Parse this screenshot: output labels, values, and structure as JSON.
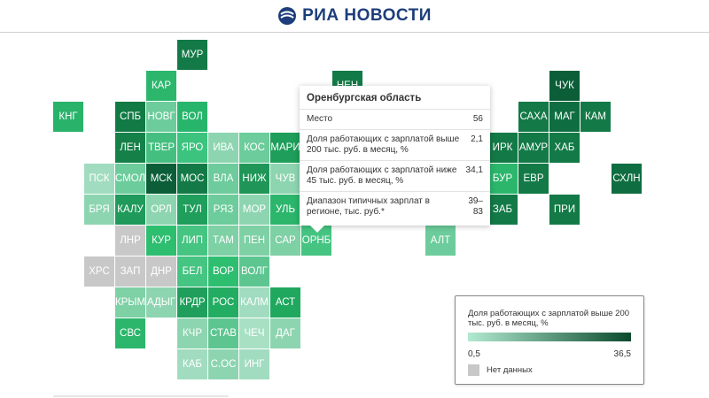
{
  "header": {
    "brand": "РИА НОВОСТИ",
    "logo_icon": "ria-logo-icon"
  },
  "colors": {
    "no_data": "#c8c8c8",
    "scale_min": "#b2ead0",
    "scale_max": "#0b4a2e"
  },
  "cells": [
    {
      "label": "МУР",
      "col": 4,
      "row": 0,
      "color": "#137a47"
    },
    {
      "label": "КАР",
      "col": 3,
      "row": 1,
      "color": "#2bb66c"
    },
    {
      "label": "НЕН",
      "col": 9,
      "row": 1,
      "color": "#127a47"
    },
    {
      "label": "ЧУК",
      "col": 16,
      "row": 1,
      "color": "#0b5e37"
    },
    {
      "label": "КНГ",
      "col": 0,
      "row": 2,
      "color": "#28b26a"
    },
    {
      "label": "СПБ",
      "col": 2,
      "row": 2,
      "color": "#117a45"
    },
    {
      "label": "НОВГ",
      "col": 3,
      "row": 2,
      "color": "#6ccc9b"
    },
    {
      "label": "ВОЛ",
      "col": 4,
      "row": 2,
      "color": "#27b56b"
    },
    {
      "label": "САХА",
      "col": 15,
      "row": 2,
      "color": "#137a47"
    },
    {
      "label": "МАГ",
      "col": 16,
      "row": 2,
      "color": "#0f6e41"
    },
    {
      "label": "КАМ",
      "col": 17,
      "row": 2,
      "color": "#137a47"
    },
    {
      "label": "ЛЕН",
      "col": 2,
      "row": 3,
      "color": "#168049"
    },
    {
      "label": "ТВЕР",
      "col": 3,
      "row": 3,
      "color": "#45bf80"
    },
    {
      "label": "ЯРО",
      "col": 4,
      "row": 3,
      "color": "#3cc47e"
    },
    {
      "label": "ИВА",
      "col": 5,
      "row": 3,
      "color": "#8dd5b0"
    },
    {
      "label": "КОС",
      "col": 6,
      "row": 3,
      "color": "#6ccc9b"
    },
    {
      "label": "МАРИ",
      "col": 7,
      "row": 3,
      "color": "#1e9e5a"
    },
    {
      "label": "ИРК",
      "col": 14,
      "row": 3,
      "color": "#137a47"
    },
    {
      "label": "АМУР",
      "col": 15,
      "row": 3,
      "color": "#137a47"
    },
    {
      "label": "ХАБ",
      "col": 16,
      "row": 3,
      "color": "#137a47"
    },
    {
      "label": "ПСК",
      "col": 1,
      "row": 4,
      "color": "#a1dcc0"
    },
    {
      "label": "СМОЛ",
      "col": 2,
      "row": 4,
      "color": "#6ccc9b"
    },
    {
      "label": "МСК",
      "col": 3,
      "row": 4,
      "color": "#0b5e37"
    },
    {
      "label": "МОС",
      "col": 4,
      "row": 4,
      "color": "#137a47"
    },
    {
      "label": "ВЛА",
      "col": 5,
      "row": 4,
      "color": "#6dcb9c"
    },
    {
      "label": "НИЖ",
      "col": 6,
      "row": 4,
      "color": "#1f9657"
    },
    {
      "label": "ЧУВ",
      "col": 7,
      "row": 4,
      "color": "#8dd5b0"
    },
    {
      "label": "БУР",
      "col": 14,
      "row": 4,
      "color": "#2bb66c"
    },
    {
      "label": "ЕВР",
      "col": 15,
      "row": 4,
      "color": "#137a47"
    },
    {
      "label": "СХЛН",
      "col": 18,
      "row": 4,
      "color": "#0f6e41"
    },
    {
      "label": "БРЯ",
      "col": 1,
      "row": 5,
      "color": "#8dd5b0"
    },
    {
      "label": "КАЛУ",
      "col": 2,
      "row": 5,
      "color": "#1f9a5a"
    },
    {
      "label": "ОРЛ",
      "col": 3,
      "row": 5,
      "color": "#8dd5b0"
    },
    {
      "label": "ТУЛ",
      "col": 4,
      "row": 5,
      "color": "#1f9e5c"
    },
    {
      "label": "РЯЗ",
      "col": 5,
      "row": 5,
      "color": "#6ccc9b"
    },
    {
      "label": "МОР",
      "col": 6,
      "row": 5,
      "color": "#8dd5b0"
    },
    {
      "label": "УЛЬ",
      "col": 7,
      "row": 5,
      "color": "#2bb66c"
    },
    {
      "label": "ЗАБ",
      "col": 14,
      "row": 5,
      "color": "#137a47"
    },
    {
      "label": "ПРИ",
      "col": 16,
      "row": 5,
      "color": "#137a47"
    },
    {
      "label": "ЛНР",
      "col": 2,
      "row": 6,
      "color": "#c8c8c8"
    },
    {
      "label": "КУР",
      "col": 3,
      "row": 6,
      "color": "#2ebe70"
    },
    {
      "label": "ЛИП",
      "col": 4,
      "row": 6,
      "color": "#45c482"
    },
    {
      "label": "ТАМ",
      "col": 5,
      "row": 6,
      "color": "#7ed0a5"
    },
    {
      "label": "ПЕН",
      "col": 6,
      "row": 6,
      "color": "#7ed0a5"
    },
    {
      "label": "САР",
      "col": 7,
      "row": 6,
      "color": "#7ed0a5"
    },
    {
      "label": "ОРНБ",
      "col": 8,
      "row": 6,
      "color": "#45c482"
    },
    {
      "label": "АЛТ",
      "col": 12,
      "row": 6,
      "color": "#6ccc9b"
    },
    {
      "label": "ХРС",
      "col": 1,
      "row": 7,
      "color": "#c8c8c8"
    },
    {
      "label": "ЗАП",
      "col": 2,
      "row": 7,
      "color": "#c8c8c8"
    },
    {
      "label": "ДНР",
      "col": 3,
      "row": 7,
      "color": "#c8c8c8"
    },
    {
      "label": "БЕЛ",
      "col": 4,
      "row": 7,
      "color": "#45c482"
    },
    {
      "label": "ВОР",
      "col": 5,
      "row": 7,
      "color": "#2ebe70"
    },
    {
      "label": "ВОЛГ",
      "col": 6,
      "row": 7,
      "color": "#5dc690"
    },
    {
      "label": "КРЫМ",
      "col": 2,
      "row": 8,
      "color": "#7ed0a5"
    },
    {
      "label": "АДЫГ",
      "col": 3,
      "row": 8,
      "color": "#8dd5b0"
    },
    {
      "label": "КРДР",
      "col": 4,
      "row": 8,
      "color": "#1f9e5c"
    },
    {
      "label": "РОС",
      "col": 5,
      "row": 8,
      "color": "#22ad62"
    },
    {
      "label": "КАЛМ",
      "col": 6,
      "row": 8,
      "color": "#a1dcc0"
    },
    {
      "label": "АСТ",
      "col": 7,
      "row": 8,
      "color": "#1fa85e"
    },
    {
      "label": "СВС",
      "col": 2,
      "row": 9,
      "color": "#2bb66c"
    },
    {
      "label": "КЧР",
      "col": 4,
      "row": 9,
      "color": "#8dd5b0"
    },
    {
      "label": "СТАВ",
      "col": 5,
      "row": 9,
      "color": "#5dc690"
    },
    {
      "label": "ЧЕЧ",
      "col": 6,
      "row": 9,
      "color": "#a8e0c4"
    },
    {
      "label": "ДАГ",
      "col": 7,
      "row": 9,
      "color": "#8dd5b0"
    },
    {
      "label": "КАБ",
      "col": 4,
      "row": 10,
      "color": "#a1dcc0"
    },
    {
      "label": "С.ОС",
      "col": 5,
      "row": 10,
      "color": "#8dd5b0"
    },
    {
      "label": "ИНГ",
      "col": 6,
      "row": 10,
      "color": "#a1dcc0"
    }
  ],
  "tooltip": {
    "title": "Оренбургская область",
    "rows": [
      {
        "label": "Место",
        "value": "56"
      },
      {
        "label": "Доля работающих с зарплатой выше 200 тыс. руб. в месяц, %",
        "value": "2,1"
      },
      {
        "label": "Доля работающих с зарплатой ниже 45 тыс. руб. в месяц, %",
        "value": "34,1"
      },
      {
        "label": "Диапазон типичных зарплат в регионе, тыс. руб.*",
        "value": "39–83"
      }
    ]
  },
  "legend": {
    "title": "Доля работающих с зарплатой выше 200 тыс. руб. в месяц, %",
    "min": "0,5",
    "max": "36,5",
    "no_data": "Нет данных"
  }
}
